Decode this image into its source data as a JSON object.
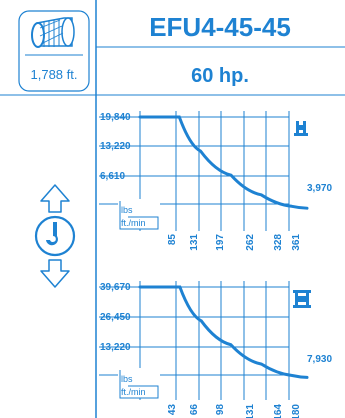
{
  "header": {
    "model": "EFU4-45-45",
    "power": "60 hp.",
    "cable_length": "1,788 ft."
  },
  "icons": {
    "drum": "cable-drum-icon",
    "hook": "hook-up-down-icon",
    "single_line": "single-line-reeving-icon",
    "double_line": "double-line-reeving-icon"
  },
  "colors": {
    "accent": "#1e82d2",
    "curve": "#1e82d2",
    "background": "#ffffff"
  },
  "chart_data": [
    {
      "type": "line",
      "xlabel": "ft./min",
      "ylabel": "lbs",
      "x_ticks": [
        "85",
        "131",
        "197",
        "262",
        "328",
        "361"
      ],
      "y_ticks": [
        "19,840",
        "13,220",
        "6,610"
      ],
      "end_label": "3,970",
      "x": [
        0,
        85,
        131,
        197,
        262,
        328,
        361
      ],
      "y": [
        19840,
        19840,
        13900,
        9700,
        6300,
        4300,
        3970
      ],
      "xlim": [
        0,
        361
      ],
      "ylim": [
        0,
        19840
      ]
    },
    {
      "type": "line",
      "xlabel": "ft./min",
      "ylabel": "lbs",
      "x_ticks": [
        "43",
        "66",
        "98",
        "131",
        "164",
        "180"
      ],
      "y_ticks": [
        "39,670",
        "26,450",
        "13,220"
      ],
      "end_label": "7,930",
      "x": [
        0,
        43,
        66,
        98,
        131,
        164,
        180
      ],
      "y": [
        39670,
        39670,
        27800,
        19400,
        12600,
        8600,
        7930
      ],
      "xlim": [
        0,
        180
      ],
      "ylim": [
        0,
        39670
      ]
    }
  ]
}
